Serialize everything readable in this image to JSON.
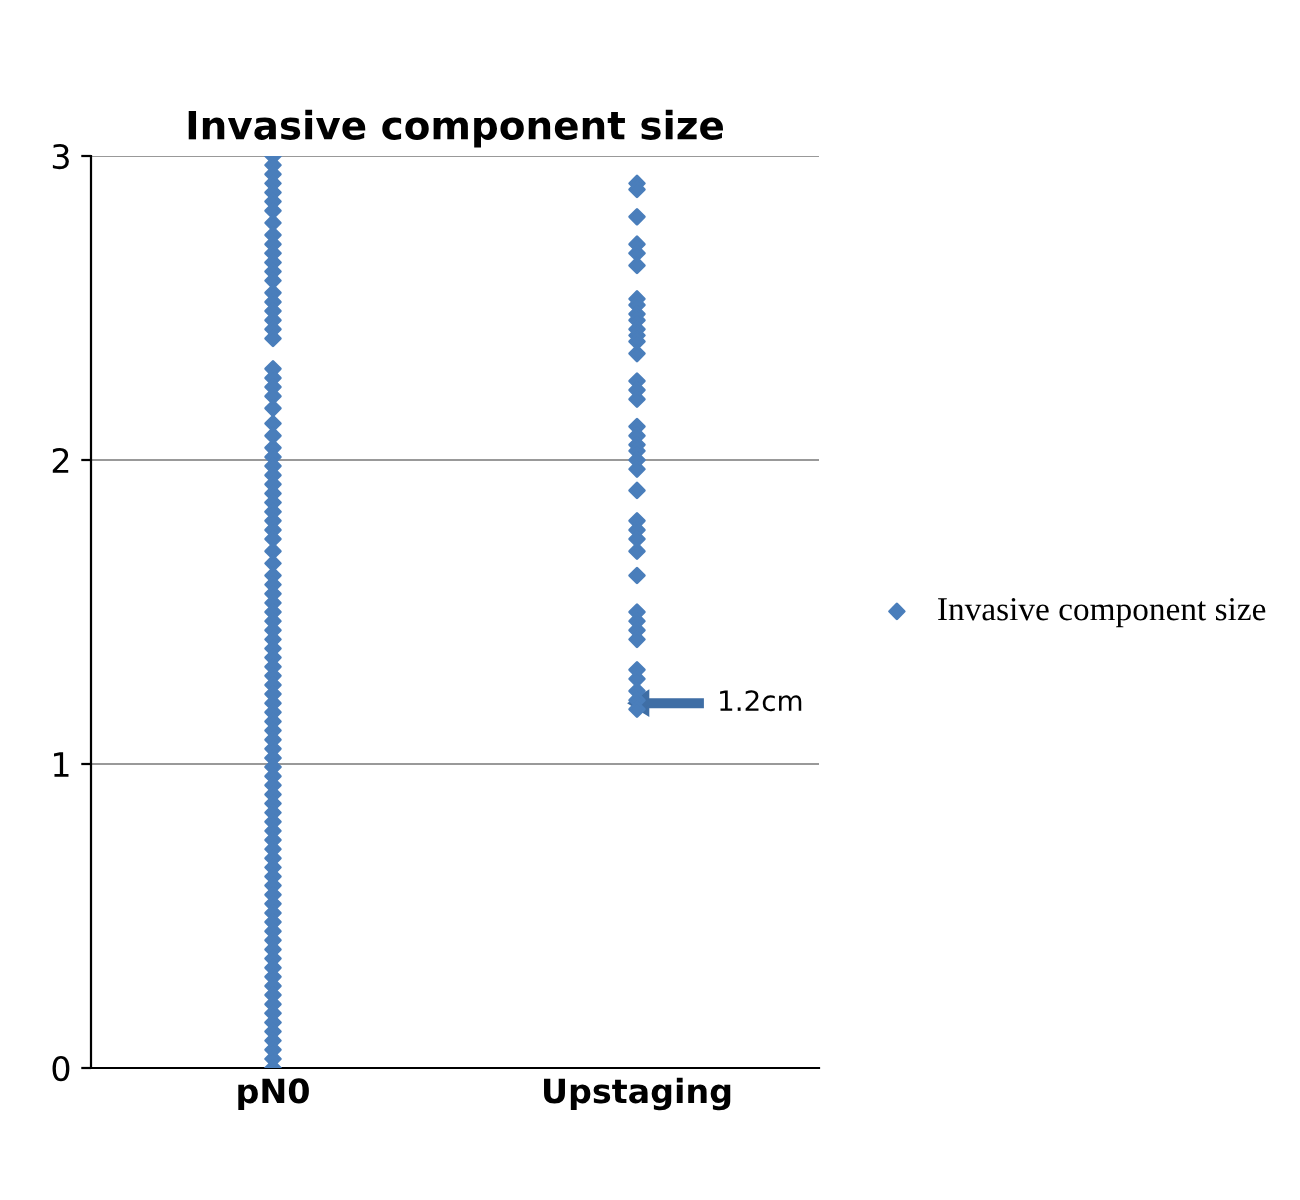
{
  "chart_data": {
    "type": "scatter",
    "title": "Invasive component size",
    "categories": [
      "pN0",
      "Upstaging"
    ],
    "series": [
      {
        "name": "Invasive component size",
        "color": "#4a7ebb",
        "x": [
          "pN0",
          "pN0",
          "pN0",
          "pN0",
          "pN0",
          "pN0",
          "pN0",
          "pN0",
          "pN0",
          "pN0",
          "pN0",
          "pN0",
          "pN0",
          "pN0",
          "pN0",
          "pN0",
          "pN0",
          "pN0",
          "pN0",
          "pN0",
          "pN0",
          "pN0",
          "pN0",
          "pN0",
          "pN0",
          "pN0",
          "pN0",
          "pN0",
          "pN0",
          "pN0",
          "pN0",
          "pN0",
          "pN0",
          "pN0",
          "pN0",
          "pN0",
          "pN0",
          "pN0",
          "pN0",
          "pN0",
          "pN0",
          "pN0",
          "pN0",
          "pN0",
          "pN0",
          "pN0",
          "pN0",
          "pN0",
          "pN0",
          "pN0",
          "pN0",
          "pN0",
          "pN0",
          "pN0",
          "pN0",
          "pN0",
          "pN0",
          "pN0",
          "pN0",
          "pN0",
          "pN0",
          "pN0",
          "pN0",
          "pN0",
          "pN0",
          "pN0",
          "pN0",
          "pN0",
          "pN0",
          "pN0",
          "pN0",
          "pN0",
          "pN0",
          "pN0",
          "pN0",
          "pN0",
          "pN0",
          "pN0",
          "pN0",
          "pN0",
          "pN0",
          "pN0",
          "pN0",
          "pN0",
          "pN0",
          "pN0",
          "pN0",
          "pN0",
          "pN0",
          "pN0",
          "pN0",
          "pN0",
          "pN0",
          "pN0",
          "pN0",
          "Upstaging",
          "Upstaging",
          "Upstaging",
          "Upstaging",
          "Upstaging",
          "Upstaging",
          "Upstaging",
          "Upstaging",
          "Upstaging",
          "Upstaging",
          "Upstaging",
          "Upstaging",
          "Upstaging",
          "Upstaging",
          "Upstaging",
          "Upstaging",
          "Upstaging",
          "Upstaging",
          "Upstaging",
          "Upstaging",
          "Upstaging",
          "Upstaging",
          "Upstaging",
          "Upstaging",
          "Upstaging",
          "Upstaging",
          "Upstaging",
          "Upstaging",
          "Upstaging",
          "Upstaging",
          "Upstaging",
          "Upstaging",
          "Upstaging",
          "Upstaging",
          "Upstaging",
          "Upstaging",
          "Upstaging",
          "Upstaging"
        ],
        "values": [
          3.0,
          2.97,
          2.94,
          2.91,
          2.88,
          2.85,
          2.82,
          2.78,
          2.74,
          2.71,
          2.68,
          2.65,
          2.62,
          2.59,
          2.55,
          2.52,
          2.49,
          2.46,
          2.43,
          2.4,
          2.3,
          2.27,
          2.24,
          2.21,
          2.17,
          2.12,
          2.08,
          2.04,
          2.01,
          1.98,
          1.95,
          1.92,
          1.89,
          1.86,
          1.83,
          1.8,
          1.77,
          1.74,
          1.7,
          1.66,
          1.62,
          1.59,
          1.56,
          1.53,
          1.5,
          1.47,
          1.44,
          1.41,
          1.38,
          1.35,
          1.32,
          1.29,
          1.26,
          1.23,
          1.2,
          1.17,
          1.14,
          1.11,
          1.08,
          1.05,
          1.02,
          0.99,
          0.96,
          0.93,
          0.9,
          0.87,
          0.84,
          0.81,
          0.78,
          0.75,
          0.72,
          0.69,
          0.66,
          0.63,
          0.6,
          0.57,
          0.54,
          0.51,
          0.48,
          0.45,
          0.42,
          0.39,
          0.36,
          0.33,
          0.3,
          0.27,
          0.24,
          0.21,
          0.18,
          0.15,
          0.12,
          0.09,
          0.06,
          0.03,
          0.0,
          2.91,
          2.89,
          2.8,
          2.71,
          2.68,
          2.64,
          2.53,
          2.51,
          2.48,
          2.46,
          2.43,
          2.41,
          2.39,
          2.35,
          2.26,
          2.23,
          2.2,
          2.11,
          2.08,
          2.05,
          2.03,
          2.0,
          1.97,
          1.9,
          1.8,
          1.77,
          1.74,
          1.7,
          1.62,
          1.5,
          1.47,
          1.44,
          1.41,
          1.31,
          1.28,
          1.24,
          1.21,
          1.18
        ]
      }
    ],
    "annotations": [
      "1.2cm"
    ],
    "ylim": [
      0,
      3
    ],
    "yticks": [
      0,
      1,
      2,
      3
    ],
    "grid": "y",
    "legend": "right",
    "marker": "diamond"
  }
}
